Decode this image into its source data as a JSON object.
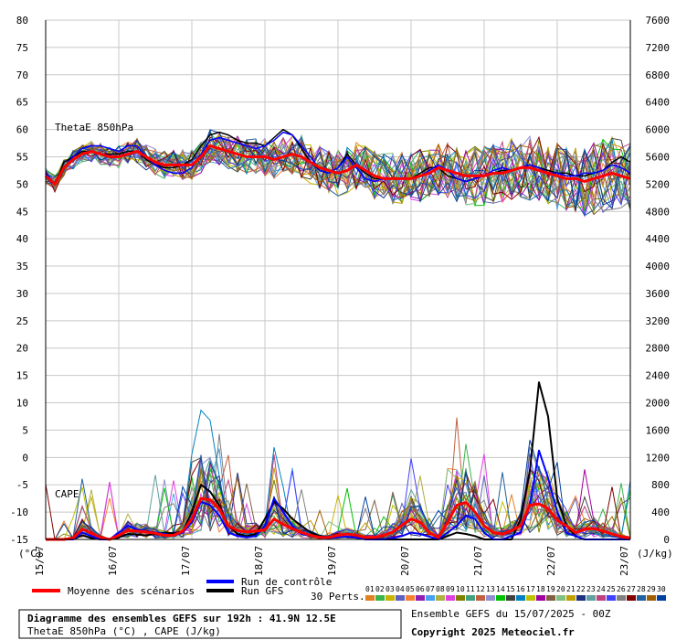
{
  "chart_data": {
    "type": "line",
    "title": "Diagramme des ensembles GEFS sur 192h : 41.9N 12.5E",
    "subtitle": "ThetaE 850hPa (°C) , CAPE (J/kg)",
    "left_axis_unit": "(°C)",
    "right_axis_unit": "(J/kg)",
    "panel_labels": {
      "thetae": "ThetaE 850hPa",
      "cape": "CAPE"
    },
    "y_left": {
      "min": -15,
      "max": 80,
      "step": 5,
      "ticks": [
        "-15",
        "-10",
        "-5",
        "0",
        "5",
        "10",
        "15",
        "20",
        "25",
        "30",
        "35",
        "40",
        "45",
        "50",
        "55",
        "60",
        "65",
        "70",
        "75",
        "80"
      ]
    },
    "y_right": {
      "min": 0,
      "max": 7600,
      "step": 400,
      "ticks": [
        "0",
        "400",
        "800",
        "1200",
        "1600",
        "2000",
        "2400",
        "2800",
        "3200",
        "3600",
        "4000",
        "4400",
        "4800",
        "5200",
        "5600",
        "6000",
        "6400",
        "6800",
        "7200",
        "7600"
      ]
    },
    "x_dates": [
      "15/07",
      "16/07",
      "17/07",
      "18/07",
      "19/07",
      "20/07",
      "21/07",
      "22/07",
      "23/07"
    ],
    "n_steps": 65,
    "thetae_mean": [
      51.5,
      50,
      53,
      54.5,
      55.5,
      56,
      55.5,
      55,
      55,
      55.5,
      56,
      55,
      54,
      53.5,
      53.5,
      53.5,
      53.5,
      55,
      57,
      56.5,
      56,
      55.5,
      55,
      55,
      55,
      54.5,
      55,
      55.5,
      55,
      54,
      53,
      52.5,
      52,
      52.5,
      53.5,
      52.5,
      51.5,
      51,
      51,
      51,
      51,
      51.5,
      52,
      53,
      52.5,
      52,
      51.5,
      51.5,
      51.5,
      52,
      52,
      52.5,
      53,
      53,
      52.5,
      52,
      51.5,
      51,
      51,
      50.5,
      51,
      51.5,
      52,
      51.5,
      51
    ],
    "thetae_control": [
      52,
      50,
      53,
      55,
      56.5,
      57,
      57,
      56.5,
      56,
      57,
      57,
      55,
      53.5,
      52.5,
      52,
      52,
      53,
      55.5,
      58,
      58.5,
      58,
      57.5,
      57,
      56.5,
      57,
      58,
      59.5,
      59,
      57,
      55,
      52.5,
      52,
      53,
      55,
      53,
      51,
      50.5,
      51,
      51,
      51,
      51,
      51.5,
      52.5,
      53.5,
      52.5,
      51,
      50.5,
      51,
      51.5,
      52.5,
      53,
      52.5,
      53,
      53.5,
      53,
      52,
      52,
      51.5,
      51.5,
      52,
      52,
      52.5,
      53.5,
      53,
      52
    ],
    "thetae_gfs": [
      52,
      50,
      54,
      55,
      56,
      56,
      55.5,
      55.5,
      55.5,
      56,
      56,
      54.5,
      53.5,
      53,
      53,
      53.5,
      54.5,
      57,
      59,
      59.5,
      59,
      58,
      57.5,
      57.5,
      57,
      58.5,
      60,
      59,
      56.5,
      54,
      52.5,
      52,
      53,
      55.5,
      53.5,
      52,
      51,
      51,
      51,
      51,
      51,
      52,
      53,
      53,
      51.5,
      51,
      50.5,
      51,
      51.5,
      52,
      52.5,
      52.5,
      53,
      53.5,
      53,
      52.5,
      52,
      52,
      51.5,
      51.5,
      52,
      52.5,
      54,
      55,
      54
    ],
    "cape_mean": [
      0,
      0,
      0,
      20,
      150,
      90,
      30,
      0,
      60,
      130,
      120,
      110,
      90,
      60,
      60,
      120,
      300,
      600,
      580,
      450,
      200,
      130,
      110,
      120,
      140,
      300,
      220,
      160,
      100,
      60,
      30,
      30,
      60,
      80,
      60,
      30,
      30,
      60,
      110,
      210,
      300,
      250,
      100,
      30,
      250,
      500,
      540,
      400,
      200,
      100,
      80,
      130,
      200,
      500,
      520,
      450,
      280,
      200,
      100,
      150,
      160,
      120,
      80,
      40,
      20
    ],
    "cape_control": [
      0,
      0,
      0,
      0,
      100,
      50,
      0,
      0,
      100,
      200,
      150,
      120,
      100,
      80,
      50,
      100,
      250,
      550,
      500,
      350,
      100,
      50,
      30,
      50,
      200,
      600,
      400,
      200,
      80,
      50,
      30,
      20,
      30,
      40,
      30,
      0,
      0,
      0,
      20,
      50,
      100,
      80,
      40,
      0,
      100,
      200,
      350,
      300,
      100,
      0,
      0,
      50,
      100,
      500,
      1300,
      900,
      400,
      100,
      50,
      0,
      0,
      0,
      0,
      0,
      0
    ],
    "cape_gfs": [
      0,
      0,
      0,
      0,
      60,
      20,
      0,
      0,
      30,
      80,
      70,
      60,
      80,
      100,
      90,
      120,
      400,
      800,
      700,
      500,
      200,
      80,
      50,
      80,
      300,
      550,
      450,
      300,
      200,
      100,
      50,
      30,
      60,
      80,
      50,
      20,
      0,
      0,
      0,
      0,
      0,
      0,
      0,
      0,
      50,
      100,
      80,
      50,
      0,
      0,
      0,
      0,
      300,
      1000,
      2300,
      1800,
      600,
      200,
      50,
      0,
      0,
      0,
      0,
      0,
      0
    ],
    "legend": {
      "mean": "Moyenne des scénarios",
      "control": "Run de contrôle",
      "gfs": "Run GFS",
      "perts_label": "30 Perts.",
      "perts": [
        "01",
        "02",
        "03",
        "04",
        "05",
        "06",
        "07",
        "08",
        "09",
        "10",
        "11",
        "12",
        "13",
        "14",
        "15",
        "16",
        "17",
        "18",
        "19",
        "20",
        "21",
        "22",
        "23",
        "24",
        "25",
        "26",
        "27",
        "28",
        "29",
        "30"
      ]
    },
    "colors": {
      "mean": "#ff0000",
      "control": "#0000ff",
      "gfs": "#000000",
      "grid": "#c8c8c8",
      "perts": [
        "#e08020",
        "#3cb44b",
        "#c8b400",
        "#6060c0",
        "#f58231",
        "#911eb4",
        "#46a0f0",
        "#b0b040",
        "#e040e0",
        "#808000",
        "#40a080",
        "#c06040",
        "#9090d0",
        "#00c000",
        "#404040",
        "#0080c0",
        "#c0c000",
        "#a000a0",
        "#806040",
        "#80c080",
        "#c0a000",
        "#203080",
        "#60a0a0",
        "#c04080",
        "#4040ff",
        "#808080",
        "#800000",
        "#2060a0",
        "#a06000",
        "#0040a0"
      ]
    },
    "grid": true
  },
  "footer": {
    "title_line": "Diagramme des ensembles GEFS sur 192h : 41.9N 12.5E",
    "subtitle_line": "ThetaE 850hPa (°C) , CAPE (J/kg)",
    "run_info": "Ensemble GEFS du 15/07/2025 - 00Z",
    "copyright": "Copyright 2025 Meteociel.fr"
  }
}
